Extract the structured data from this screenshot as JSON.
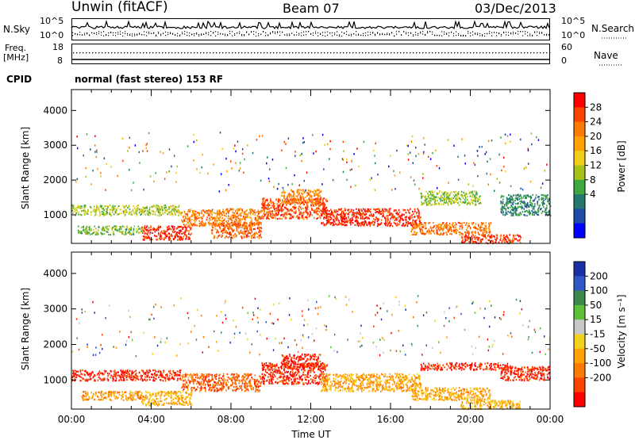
{
  "header": {
    "station": "Unwin (fitACF)",
    "beam": "Beam 07",
    "date": "03/Dec/2013"
  },
  "noise_panel": {
    "left_label": "N.Sky",
    "left_ticks": [
      "10^5",
      "10^0"
    ],
    "right_ticks": [
      "10^5",
      "10^0"
    ],
    "right_label": "N.Search"
  },
  "freq_panel": {
    "label_line1": "Freq.",
    "label_line2": "[MHz]",
    "left_ticks": [
      "18",
      "8"
    ],
    "right_ticks": [
      "60",
      "0"
    ],
    "right_label": "Nave"
  },
  "cpid": {
    "label": "CPID",
    "value": "normal (fast stereo) 153 RF"
  },
  "power_panel": {
    "ylabel": "Slant Range [km]",
    "yticks": [
      "4000",
      "3000",
      "2000",
      "1000"
    ],
    "colorbar_label": "Power [dB]",
    "colorbar_ticks": [
      "28",
      "24",
      "20",
      "16",
      "12",
      "8",
      "4"
    ],
    "colorbar_colors": [
      "#ff0000",
      "#ff4400",
      "#ff7a00",
      "#ffa200",
      "#f2cc1a",
      "#a6c21a",
      "#3fa83f",
      "#24786e",
      "#1f4aa8",
      "#0000ff"
    ]
  },
  "velocity_panel": {
    "ylabel": "Slant Range [km]",
    "yticks": [
      "4000",
      "3000",
      "2000",
      "1000"
    ],
    "colorbar_label": "Velocity [m s⁻¹]",
    "colorbar_ticks": [
      "200",
      "100",
      "50",
      "15",
      "-15",
      "-50",
      "-100",
      "-200"
    ],
    "colorbar_colors": [
      "#1a2ea6",
      "#2e58c8",
      "#3c8a4a",
      "#5cc23a",
      "#c8c8c8",
      "#f2d21a",
      "#ffa200",
      "#ff7a00",
      "#ff4400",
      "#ff0000"
    ]
  },
  "x_axis": {
    "ticks": [
      "00:00",
      "04:00",
      "08:00",
      "12:00",
      "16:00",
      "20:00",
      "00:00"
    ],
    "label": "Time UT"
  },
  "chart_data": [
    {
      "type": "heatmap",
      "title": "Power [dB]",
      "xlabel": "Time UT",
      "ylabel": "Slant Range [km]",
      "xlim": [
        0,
        24
      ],
      "ylim": [
        180,
        4600
      ],
      "colorbar_range": [
        0,
        30
      ],
      "regions": [
        {
          "t0": 0.0,
          "t1": 5.5,
          "r0": 1000,
          "r1": 1300,
          "level": 14
        },
        {
          "t0": 0.3,
          "t1": 3.5,
          "r0": 450,
          "r1": 700,
          "level": 12
        },
        {
          "t0": 3.5,
          "t1": 6.0,
          "r0": 300,
          "r1": 700,
          "level": 27
        },
        {
          "t0": 5.5,
          "t1": 9.5,
          "r0": 700,
          "r1": 1200,
          "level": 22
        },
        {
          "t0": 7.0,
          "t1": 9.5,
          "r0": 350,
          "r1": 800,
          "level": 24
        },
        {
          "t0": 9.5,
          "t1": 12.8,
          "r0": 900,
          "r1": 1500,
          "level": 25
        },
        {
          "t0": 10.5,
          "t1": 12.5,
          "r0": 1350,
          "r1": 1750,
          "level": 22
        },
        {
          "t0": 12.5,
          "t1": 17.5,
          "r0": 700,
          "r1": 1200,
          "level": 27
        },
        {
          "t0": 17.0,
          "t1": 21.0,
          "r0": 450,
          "r1": 800,
          "level": 23
        },
        {
          "t0": 19.5,
          "t1": 22.5,
          "r0": 200,
          "r1": 450,
          "level": 26
        },
        {
          "t0": 17.5,
          "t1": 20.5,
          "r0": 1300,
          "r1": 1700,
          "level": 13
        },
        {
          "t0": 21.5,
          "t1": 24.0,
          "r0": 1000,
          "r1": 1600,
          "level": 8
        }
      ]
    },
    {
      "type": "heatmap",
      "title": "Velocity [m s⁻¹]",
      "xlabel": "Time UT",
      "ylabel": "Slant Range [km]",
      "xlim": [
        0,
        24
      ],
      "ylim": [
        180,
        4600
      ],
      "colorbar_range": [
        -250,
        250
      ],
      "regions": [
        {
          "t0": 0.0,
          "t1": 5.5,
          "r0": 1000,
          "r1": 1300,
          "level": -200
        },
        {
          "t0": 0.5,
          "t1": 3.5,
          "r0": 450,
          "r1": 700,
          "level": -100
        },
        {
          "t0": 3.5,
          "t1": 6.0,
          "r0": 300,
          "r1": 700,
          "level": -60
        },
        {
          "t0": 5.5,
          "t1": 9.5,
          "r0": 700,
          "r1": 1200,
          "level": -150
        },
        {
          "t0": 9.5,
          "t1": 12.8,
          "r0": 900,
          "r1": 1500,
          "level": -200
        },
        {
          "t0": 10.5,
          "t1": 12.5,
          "r0": 1350,
          "r1": 1750,
          "level": -200
        },
        {
          "t0": 12.5,
          "t1": 17.5,
          "r0": 700,
          "r1": 1200,
          "level": -80
        },
        {
          "t0": 17.0,
          "t1": 21.0,
          "r0": 450,
          "r1": 800,
          "level": -70
        },
        {
          "t0": 19.5,
          "t1": 22.5,
          "r0": 200,
          "r1": 450,
          "level": -60
        },
        {
          "t0": 17.5,
          "t1": 22.0,
          "r0": 1300,
          "r1": 1500,
          "level": -200
        },
        {
          "t0": 21.5,
          "t1": 24.0,
          "r0": 1000,
          "r1": 1400,
          "level": -200
        }
      ]
    }
  ]
}
